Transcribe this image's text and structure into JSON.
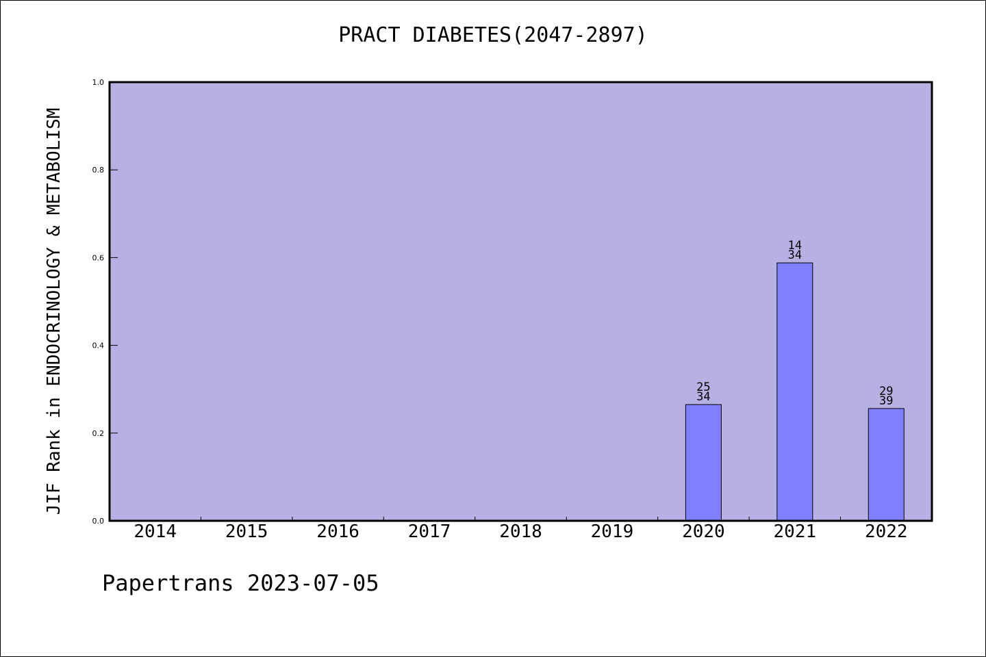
{
  "colors": {
    "plot_background": "#b7b1e3",
    "bar_fill": "#8080ff",
    "axis": "#000000"
  },
  "chart_data": {
    "type": "bar",
    "title": "PRACT DIABETES(2047-2897)",
    "xlabel": "",
    "ylabel": "JIF Rank in ENDOCRINOLOGY & METABOLISM",
    "categories": [
      "2014",
      "2015",
      "2016",
      "2017",
      "2018",
      "2019",
      "2020",
      "2021",
      "2022"
    ],
    "values": [
      null,
      null,
      null,
      null,
      null,
      null,
      0.265,
      0.588,
      0.256
    ],
    "bar_labels": [
      null,
      null,
      null,
      null,
      null,
      null,
      [
        "25",
        "34"
      ],
      [
        "14",
        "34"
      ],
      [
        "29",
        "39"
      ]
    ],
    "ylim": [
      0,
      1.0
    ],
    "yticks": [
      "0.0",
      "0.2",
      "0.4",
      "0.6",
      "0.8",
      "1.0"
    ],
    "grid": false,
    "legend": "none"
  },
  "footer": {
    "text": "Papertrans 2023-07-05"
  }
}
